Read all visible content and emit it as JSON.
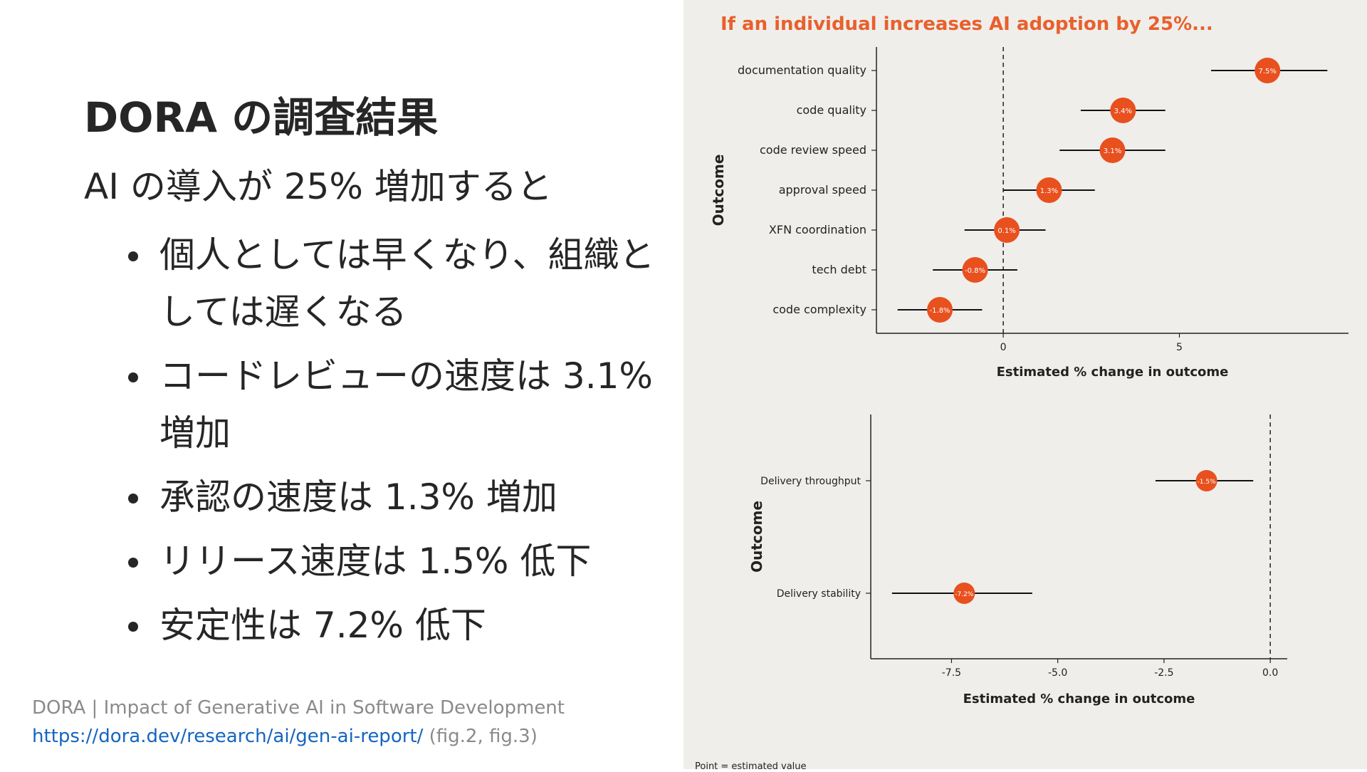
{
  "slide": {
    "title": "DORA の調査結果",
    "lead": "AI の導入が 25% 増加すると",
    "bullets": [
      "個人としては早くなり、組織としては遅くなる",
      "コードレビューの速度は 3.1% 増加",
      "承認の速度は 1.3% 増加",
      "リリース速度は 1.5% 低下",
      "安定性は 7.2% 低下"
    ],
    "source_text": "DORA | Impact of Generative AI in Software Development",
    "source_url": "https://dora.dev/research/ai/gen-ai-report/",
    "source_note": "(fig.2, fig.3)"
  },
  "colors": {
    "accent": "#e8501e",
    "title_accent": "#e8602c",
    "link": "#1565c0"
  },
  "figure": {
    "headline": "If an individual increases AI adoption by 25%...",
    "footnote": "Point = estimated value"
  },
  "chart_data": [
    {
      "type": "scatter",
      "subtype": "point-estimate-with-intervals",
      "ylabel": "Outcome",
      "xlabel": "Estimated % change in outcome",
      "xticks": [
        0,
        5
      ],
      "xlim": [
        -3.6,
        9.8
      ],
      "reference_line": 0,
      "points": [
        {
          "label": "documentation quality",
          "value": 7.5,
          "value_label": "7.5%",
          "low": 5.9,
          "high": 9.2
        },
        {
          "label": "code quality",
          "value": 3.4,
          "value_label": "3.4%",
          "low": 2.2,
          "high": 4.6
        },
        {
          "label": "code review speed",
          "value": 3.1,
          "value_label": "3.1%",
          "low": 1.6,
          "high": 4.6
        },
        {
          "label": "approval speed",
          "value": 1.3,
          "value_label": "1.3%",
          "low": 0.0,
          "high": 2.6
        },
        {
          "label": "XFN coordination",
          "value": 0.1,
          "value_label": "0.1%",
          "low": -1.1,
          "high": 1.2
        },
        {
          "label": "tech debt",
          "value": -0.8,
          "value_label": "-0.8%",
          "low": -2.0,
          "high": 0.4
        },
        {
          "label": "code complexity",
          "value": -1.8,
          "value_label": "-1.8%",
          "low": -3.0,
          "high": -0.6
        }
      ]
    },
    {
      "type": "scatter",
      "subtype": "point-estimate-with-intervals",
      "ylabel": "Outcome",
      "xlabel": "Estimated % change in outcome",
      "xticks": [
        -7.5,
        -5.0,
        -2.5,
        0.0
      ],
      "xtick_labels": [
        "-7.5",
        "-5.0",
        "-2.5",
        "0.0"
      ],
      "xlim": [
        -9.4,
        0.4
      ],
      "reference_line": 0,
      "points": [
        {
          "label": "Delivery throughput",
          "value": -1.5,
          "value_label": "-1.5%",
          "low": -2.7,
          "high": -0.4
        },
        {
          "label": "Delivery stability",
          "value": -7.2,
          "value_label": "-7.2%",
          "low": -8.9,
          "high": -5.6
        }
      ]
    }
  ]
}
